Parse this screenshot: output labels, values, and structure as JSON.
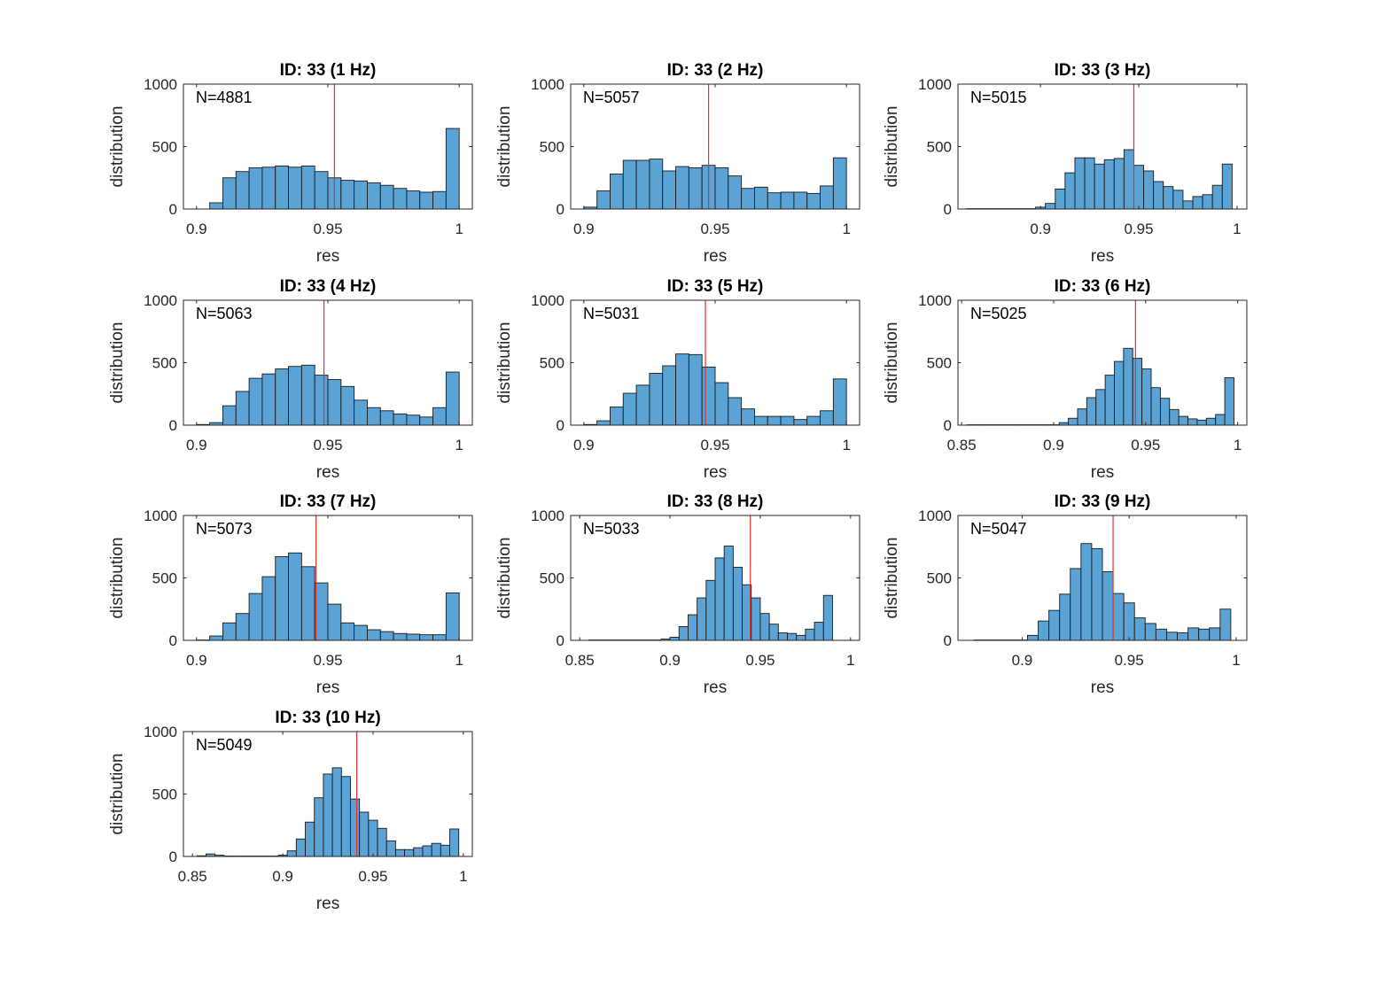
{
  "figure": {
    "background": "#ffffff",
    "bar_fill": "#5ba3d4",
    "bar_edge": "#1a1a1a",
    "mean_line_color": "#e0302b",
    "axis_color": "#262626"
  },
  "chart_data": [
    {
      "type": "bar",
      "title": "ID: 33 (1 Hz)",
      "xlabel": "res",
      "ylabel": "distribution",
      "annotation": "N=4881",
      "xlim": [
        0.895,
        1.005
      ],
      "ylim": [
        0,
        1000
      ],
      "xticks": [
        0.9,
        0.95,
        1
      ],
      "xtick_labels": [
        "0.9",
        "0.95",
        "1"
      ],
      "yticks": [
        0,
        500,
        1000
      ],
      "ytick_labels": [
        "0",
        "500",
        "1000"
      ],
      "grid": false,
      "bin_edges": [
        0.895,
        0.9,
        0.905,
        0.91,
        0.915,
        0.92,
        0.925,
        0.93,
        0.935,
        0.94,
        0.945,
        0.95,
        0.955,
        0.96,
        0.965,
        0.97,
        0.975,
        0.98,
        0.985,
        0.99,
        0.995,
        1.0
      ],
      "counts": [
        0,
        0,
        50,
        250,
        300,
        330,
        335,
        345,
        335,
        345,
        300,
        250,
        230,
        225,
        210,
        190,
        165,
        145,
        135,
        140,
        645
      ],
      "mean_line": 0.9525
    },
    {
      "type": "bar",
      "title": "ID: 33 (2 Hz)",
      "xlabel": "res",
      "ylabel": "distribution",
      "annotation": "N=5057",
      "xlim": [
        0.895,
        1.005
      ],
      "ylim": [
        0,
        1000
      ],
      "xticks": [
        0.9,
        0.95,
        1
      ],
      "xtick_labels": [
        "0.9",
        "0.95",
        "1"
      ],
      "yticks": [
        0,
        500,
        1000
      ],
      "ytick_labels": [
        "0",
        "500",
        "1000"
      ],
      "grid": false,
      "bin_edges": [
        0.9,
        0.905,
        0.91,
        0.915,
        0.92,
        0.925,
        0.93,
        0.935,
        0.94,
        0.945,
        0.95,
        0.955,
        0.96,
        0.965,
        0.97,
        0.975,
        0.98,
        0.985,
        0.99,
        0.995,
        1.0
      ],
      "counts": [
        15,
        145,
        280,
        390,
        390,
        400,
        305,
        340,
        330,
        350,
        330,
        265,
        165,
        175,
        130,
        135,
        135,
        125,
        185,
        410
      ],
      "mean_line": 0.9475
    },
    {
      "type": "bar",
      "title": "ID: 33 (3 Hz)",
      "xlabel": "res",
      "ylabel": "distribution",
      "annotation": "N=5015",
      "xlim": [
        0.858,
        1.005
      ],
      "ylim": [
        0,
        1000
      ],
      "xticks": [
        0.9,
        0.95,
        1
      ],
      "xtick_labels": [
        "0.9",
        "0.95",
        "1"
      ],
      "yticks": [
        0,
        500,
        1000
      ],
      "ytick_labels": [
        "0",
        "500",
        "1000"
      ],
      "grid": false,
      "bin_edges": [
        0.8625,
        0.8675,
        0.8725,
        0.8775,
        0.8825,
        0.8875,
        0.8925,
        0.8975,
        0.9025,
        0.9075,
        0.9125,
        0.9175,
        0.9225,
        0.9275,
        0.9325,
        0.9375,
        0.9425,
        0.9475,
        0.9525,
        0.9575,
        0.9625,
        0.9675,
        0.9725,
        0.9775,
        0.9825,
        0.9875,
        0.9925,
        0.9975
      ],
      "counts": [
        3,
        3,
        3,
        3,
        3,
        3,
        3,
        15,
        45,
        160,
        290,
        410,
        410,
        360,
        395,
        405,
        475,
        350,
        305,
        220,
        180,
        150,
        65,
        100,
        115,
        190,
        360
      ],
      "mean_line": 0.9475
    },
    {
      "type": "bar",
      "title": "ID: 33 (4 Hz)",
      "xlabel": "res",
      "ylabel": "distribution",
      "annotation": "N=5063",
      "xlim": [
        0.895,
        1.005
      ],
      "ylim": [
        0,
        1000
      ],
      "xticks": [
        0.9,
        0.95,
        1
      ],
      "xtick_labels": [
        "0.9",
        "0.95",
        "1"
      ],
      "yticks": [
        0,
        500,
        1000
      ],
      "ytick_labels": [
        "0",
        "500",
        "1000"
      ],
      "grid": false,
      "bin_edges": [
        0.9,
        0.905,
        0.91,
        0.915,
        0.92,
        0.925,
        0.93,
        0.935,
        0.94,
        0.945,
        0.95,
        0.955,
        0.96,
        0.965,
        0.97,
        0.975,
        0.98,
        0.985,
        0.99,
        0.995,
        1.0
      ],
      "counts": [
        5,
        20,
        155,
        270,
        375,
        410,
        450,
        470,
        480,
        400,
        365,
        310,
        200,
        140,
        115,
        90,
        80,
        65,
        140,
        425
      ],
      "mean_line": 0.9485
    },
    {
      "type": "bar",
      "title": "ID: 33 (5 Hz)",
      "xlabel": "res",
      "ylabel": "distribution",
      "annotation": "N=5031",
      "xlim": [
        0.895,
        1.005
      ],
      "ylim": [
        0,
        1000
      ],
      "xticks": [
        0.9,
        0.95,
        1
      ],
      "xtick_labels": [
        "0.9",
        "0.95",
        "1"
      ],
      "yticks": [
        0,
        500,
        1000
      ],
      "ytick_labels": [
        "0",
        "500",
        "1000"
      ],
      "grid": false,
      "bin_edges": [
        0.9,
        0.905,
        0.91,
        0.915,
        0.92,
        0.925,
        0.93,
        0.935,
        0.94,
        0.945,
        0.95,
        0.955,
        0.96,
        0.965,
        0.97,
        0.975,
        0.98,
        0.985,
        0.99,
        0.995,
        1.0
      ],
      "counts": [
        5,
        35,
        145,
        255,
        320,
        415,
        475,
        570,
        565,
        465,
        340,
        220,
        130,
        70,
        70,
        70,
        45,
        70,
        115,
        370
      ],
      "mean_line": 0.9463
    },
    {
      "type": "bar",
      "title": "ID: 33 (6 Hz)",
      "xlabel": "res",
      "ylabel": "distribution",
      "annotation": "N=5025",
      "xlim": [
        0.848,
        1.005
      ],
      "ylim": [
        0,
        1000
      ],
      "xticks": [
        0.85,
        0.9,
        0.95,
        1
      ],
      "xtick_labels": [
        "0.85",
        "0.9",
        "0.95",
        "1"
      ],
      "yticks": [
        0,
        500,
        1000
      ],
      "ytick_labels": [
        "0",
        "500",
        "1000"
      ],
      "grid": false,
      "bin_edges": [
        0.853,
        0.858,
        0.863,
        0.868,
        0.873,
        0.878,
        0.883,
        0.888,
        0.893,
        0.898,
        0.903,
        0.908,
        0.913,
        0.918,
        0.923,
        0.928,
        0.933,
        0.938,
        0.943,
        0.948,
        0.953,
        0.958,
        0.963,
        0.968,
        0.973,
        0.978,
        0.983,
        0.988,
        0.993,
        0.998
      ],
      "counts": [
        3,
        3,
        3,
        3,
        3,
        3,
        3,
        3,
        3,
        3,
        20,
        55,
        130,
        220,
        285,
        400,
        510,
        615,
        535,
        450,
        300,
        215,
        125,
        70,
        50,
        40,
        55,
        85,
        380
      ],
      "mean_line": 0.9445
    },
    {
      "type": "bar",
      "title": "ID: 33 (7 Hz)",
      "xlabel": "res",
      "ylabel": "distribution",
      "annotation": "N=5073",
      "xlim": [
        0.895,
        1.005
      ],
      "ylim": [
        0,
        1000
      ],
      "xticks": [
        0.9,
        0.95,
        1
      ],
      "xtick_labels": [
        "0.9",
        "0.95",
        "1"
      ],
      "yticks": [
        0,
        500,
        1000
      ],
      "ytick_labels": [
        "0",
        "500",
        "1000"
      ],
      "grid": false,
      "bin_edges": [
        0.9,
        0.905,
        0.91,
        0.915,
        0.92,
        0.925,
        0.93,
        0.935,
        0.94,
        0.945,
        0.95,
        0.955,
        0.96,
        0.965,
        0.97,
        0.975,
        0.98,
        0.985,
        0.99,
        0.995,
        1.0
      ],
      "counts": [
        3,
        35,
        140,
        215,
        375,
        510,
        670,
        700,
        590,
        460,
        290,
        140,
        120,
        85,
        70,
        55,
        50,
        45,
        45,
        380
      ],
      "mean_line": 0.9455
    },
    {
      "type": "bar",
      "title": "ID: 33 (8 Hz)",
      "xlabel": "res",
      "ylabel": "distribution",
      "annotation": "N=5033",
      "xlim": [
        0.845,
        1.005
      ],
      "ylim": [
        0,
        1000
      ],
      "xticks": [
        0.85,
        0.9,
        0.95,
        1
      ],
      "xtick_labels": [
        "0.85",
        "0.9",
        "0.95",
        "1"
      ],
      "yticks": [
        0,
        500,
        1000
      ],
      "ytick_labels": [
        "0",
        "500",
        "1000"
      ],
      "grid": false,
      "bin_edges": [
        0.855,
        0.86,
        0.865,
        0.87,
        0.875,
        0.88,
        0.885,
        0.89,
        0.895,
        0.9,
        0.905,
        0.91,
        0.915,
        0.92,
        0.925,
        0.93,
        0.935,
        0.94,
        0.945,
        0.95,
        0.955,
        0.96,
        0.965,
        0.97,
        0.975,
        0.98,
        0.985,
        0.99,
        0.995,
        1.0
      ],
      "counts": [
        3,
        3,
        3,
        3,
        3,
        3,
        3,
        3,
        10,
        25,
        110,
        205,
        340,
        480,
        660,
        755,
        585,
        445,
        340,
        215,
        130,
        60,
        55,
        40,
        90,
        145,
        360,
        0,
        0
      ],
      "mean_line": 0.9445
    },
    {
      "type": "bar",
      "title": "ID: 33 (9 Hz)",
      "xlabel": "res",
      "ylabel": "distribution",
      "annotation": "N=5047",
      "xlim": [
        0.87,
        1.005
      ],
      "ylim": [
        0,
        1000
      ],
      "xticks": [
        0.9,
        0.95,
        1
      ],
      "xtick_labels": [
        "0.9",
        "0.95",
        "1"
      ],
      "yticks": [
        0,
        500,
        1000
      ],
      "ytick_labels": [
        "0",
        "500",
        "1000"
      ],
      "grid": false,
      "bin_edges": [
        0.8775,
        0.8825,
        0.8875,
        0.8925,
        0.8975,
        0.9025,
        0.9075,
        0.9125,
        0.9175,
        0.9225,
        0.9275,
        0.9325,
        0.9375,
        0.9425,
        0.9475,
        0.9525,
        0.9575,
        0.9625,
        0.9675,
        0.9725,
        0.9775,
        0.9825,
        0.9875,
        0.9925,
        0.9975
      ],
      "counts": [
        3,
        3,
        3,
        3,
        3,
        40,
        155,
        240,
        370,
        575,
        775,
        735,
        550,
        375,
        300,
        180,
        135,
        90,
        65,
        60,
        100,
        90,
        100,
        250
      ],
      "mean_line": 0.9425
    },
    {
      "type": "bar",
      "title": "ID: 33 (10 Hz)",
      "xlabel": "res",
      "ylabel": "distribution",
      "annotation": "N=5049",
      "xlim": [
        0.845,
        1.005
      ],
      "ylim": [
        0,
        1000
      ],
      "xticks": [
        0.85,
        0.9,
        0.95,
        1
      ],
      "xtick_labels": [
        "0.85",
        "0.9",
        "0.95",
        "1"
      ],
      "yticks": [
        0,
        500,
        1000
      ],
      "ytick_labels": [
        "0",
        "500",
        "1000"
      ],
      "grid": false,
      "bin_edges": [
        0.8525,
        0.8575,
        0.8625,
        0.8675,
        0.8725,
        0.8775,
        0.8825,
        0.8875,
        0.8925,
        0.8975,
        0.9025,
        0.9075,
        0.9125,
        0.9175,
        0.9225,
        0.9275,
        0.9325,
        0.9375,
        0.9425,
        0.9475,
        0.9525,
        0.9575,
        0.9625,
        0.9675,
        0.9725,
        0.9775,
        0.9825,
        0.9875,
        0.9925,
        0.9975
      ],
      "counts": [
        5,
        20,
        10,
        3,
        3,
        3,
        3,
        3,
        3,
        10,
        45,
        140,
        275,
        470,
        660,
        710,
        640,
        460,
        355,
        290,
        225,
        125,
        55,
        55,
        70,
        85,
        105,
        90,
        220
      ],
      "mean_line": 0.941
    }
  ]
}
